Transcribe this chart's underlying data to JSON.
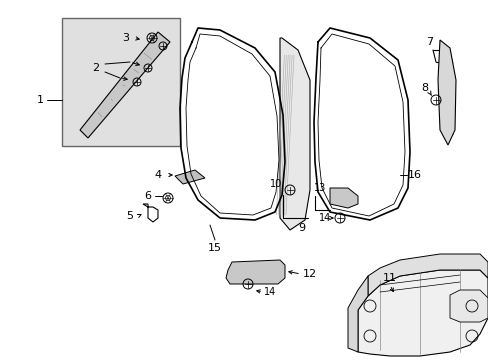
{
  "bg_color": "#ffffff",
  "line_color": "#000000",
  "fig_width": 4.89,
  "fig_height": 3.6,
  "dpi": 100
}
